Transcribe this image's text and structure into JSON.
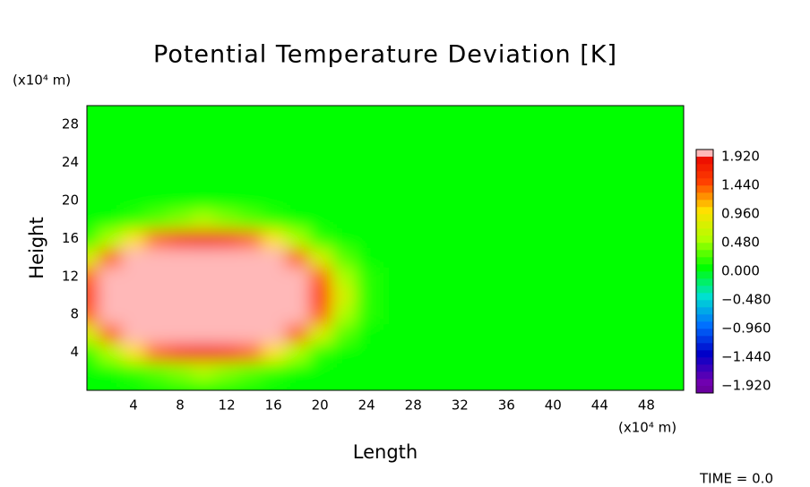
{
  "chart_data": {
    "type": "contour",
    "title": "Potential Temperature Deviation [K]",
    "x_label": "Length",
    "y_label": "Height",
    "x_unit": "(x10⁴ m)",
    "y_unit": "(x10⁴ m)",
    "annotation": "TIME = 0.0",
    "xlim": [
      0,
      51.2
    ],
    "ylim": [
      0,
      30
    ],
    "xticks": [
      4,
      8,
      12,
      16,
      20,
      24,
      28,
      32,
      36,
      40,
      44,
      48
    ],
    "yticks": [
      4,
      8,
      12,
      16,
      20,
      24,
      28
    ],
    "x": [
      0,
      2,
      4,
      6,
      8,
      10,
      12,
      14,
      16,
      18,
      20,
      22,
      24,
      26,
      28,
      30,
      32,
      34,
      36,
      38,
      40,
      42,
      44,
      46,
      48,
      50
    ],
    "y": [
      0,
      2,
      4,
      6,
      8,
      10,
      12,
      14,
      16,
      18,
      20,
      22,
      24,
      26,
      28,
      30
    ],
    "z": [
      [
        0,
        0,
        0,
        0,
        0,
        0,
        0,
        0,
        0,
        0,
        0,
        0,
        0,
        0,
        0,
        0,
        0,
        0,
        0,
        0,
        0,
        0,
        0,
        0,
        0,
        0
      ],
      [
        0,
        0.04,
        0.17,
        0.32,
        0.43,
        0.48,
        0.43,
        0.32,
        0.17,
        0.04,
        0,
        0,
        0,
        0,
        0,
        0,
        0,
        0,
        0,
        0,
        0,
        0,
        0,
        0,
        0,
        0
      ],
      [
        0.22,
        0.57,
        0.98,
        1.37,
        1.63,
        1.73,
        1.63,
        1.37,
        0.98,
        0.57,
        0.22,
        0.02,
        0,
        0,
        0,
        0,
        0,
        0,
        0,
        0,
        0,
        0,
        0,
        0,
        0,
        0
      ],
      [
        0.78,
        1.43,
        2.12,
        2.72,
        3.13,
        3.27,
        3.13,
        2.72,
        2.12,
        1.43,
        0.78,
        0.27,
        0.02,
        0,
        0,
        0,
        0,
        0,
        0,
        0,
        0,
        0,
        0,
        0,
        0,
        0
      ],
      [
        1.32,
        2.2,
        3.08,
        3.84,
        4.34,
        4.52,
        4.34,
        3.84,
        3.08,
        2.2,
        1.32,
        0.59,
        0.13,
        0,
        0,
        0,
        0,
        0,
        0,
        0,
        0,
        0,
        0,
        0,
        0,
        0
      ],
      [
        1.54,
        2.5,
        3.46,
        4.27,
        4.81,
        5,
        4.81,
        4.27,
        3.46,
        2.5,
        1.54,
        0.73,
        0.19,
        0,
        0,
        0,
        0,
        0,
        0,
        0,
        0,
        0,
        0,
        0,
        0,
        0
      ],
      [
        1.32,
        2.2,
        3.08,
        3.84,
        4.34,
        4.52,
        4.34,
        3.84,
        3.08,
        2.2,
        1.32,
        0.59,
        0.13,
        0,
        0,
        0,
        0,
        0,
        0,
        0,
        0,
        0,
        0,
        0,
        0,
        0
      ],
      [
        0.78,
        1.43,
        2.12,
        2.72,
        3.13,
        3.27,
        3.13,
        2.72,
        2.12,
        1.43,
        0.78,
        0.27,
        0.02,
        0,
        0,
        0,
        0,
        0,
        0,
        0,
        0,
        0,
        0,
        0,
        0,
        0
      ],
      [
        0.22,
        0.57,
        0.98,
        1.37,
        1.63,
        1.73,
        1.63,
        1.37,
        0.98,
        0.57,
        0.22,
        0.02,
        0,
        0,
        0,
        0,
        0,
        0,
        0,
        0,
        0,
        0,
        0,
        0,
        0,
        0
      ],
      [
        0,
        0.04,
        0.17,
        0.32,
        0.43,
        0.48,
        0.43,
        0.32,
        0.17,
        0.04,
        0,
        0,
        0,
        0,
        0,
        0,
        0,
        0,
        0,
        0,
        0,
        0,
        0,
        0,
        0,
        0
      ],
      [
        0,
        0,
        0,
        0,
        0,
        0,
        0,
        0,
        0,
        0,
        0,
        0,
        0,
        0,
        0,
        0,
        0,
        0,
        0,
        0,
        0,
        0,
        0,
        0,
        0,
        0
      ],
      [
        0,
        0,
        0,
        0,
        0,
        0,
        0,
        0,
        0,
        0,
        0,
        0,
        0,
        0,
        0,
        0,
        0,
        0,
        0,
        0,
        0,
        0,
        0,
        0,
        0,
        0
      ],
      [
        0,
        0,
        0,
        0,
        0,
        0,
        0,
        0,
        0,
        0,
        0,
        0,
        0,
        0,
        0,
        0,
        0,
        0,
        0,
        0,
        0,
        0,
        0,
        0,
        0,
        0
      ],
      [
        0,
        0,
        0,
        0,
        0,
        0,
        0,
        0,
        0,
        0,
        0,
        0,
        0,
        0,
        0,
        0,
        0,
        0,
        0,
        0,
        0,
        0,
        0,
        0,
        0,
        0
      ],
      [
        0,
        0,
        0,
        0,
        0,
        0,
        0,
        0,
        0,
        0,
        0,
        0,
        0,
        0,
        0,
        0,
        0,
        0,
        0,
        0,
        0,
        0,
        0,
        0,
        0,
        0
      ],
      [
        0,
        0,
        0,
        0,
        0,
        0,
        0,
        0,
        0,
        0,
        0,
        0,
        0,
        0,
        0,
        0,
        0,
        0,
        0,
        0,
        0,
        0,
        0,
        0,
        0,
        0
      ]
    ],
    "clim": [
      -1.92,
      1.92
    ],
    "contour_interval": 0.12,
    "cticks": [
      {
        "value": 1.92,
        "label": "1.920"
      },
      {
        "value": 1.44,
        "label": "1.440"
      },
      {
        "value": 0.96,
        "label": "0.960"
      },
      {
        "value": 0.48,
        "label": "0.480"
      },
      {
        "value": 0,
        "label": "0.000"
      },
      {
        "value": -0.48,
        "label": "−0.480"
      },
      {
        "value": -0.96,
        "label": "−0.960"
      },
      {
        "value": -1.44,
        "label": "−1.440"
      },
      {
        "value": -1.92,
        "label": "−1.920"
      }
    ],
    "colormap": [
      "#7000b0",
      "#0000c8",
      "#0070ff",
      "#00e0d0",
      "#00ff00",
      "#b0ff00",
      "#ffe000",
      "#ff4000",
      "#e80000"
    ],
    "over_color": "#ffb8b8",
    "under_color": "#6a00a0"
  }
}
